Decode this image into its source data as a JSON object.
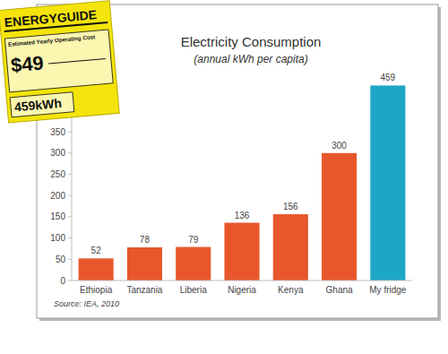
{
  "chart_data": {
    "type": "bar",
    "title": "Electricity Consumption",
    "subtitle": "(annual kWh per capita)",
    "categories": [
      "Ethiopia",
      "Tanzania",
      "Liberia",
      "Nigeria",
      "Kenya",
      "Ghana",
      "My fridge"
    ],
    "values": [
      52,
      78,
      79,
      136,
      156,
      300,
      459
    ],
    "colors": [
      "#e8572b",
      "#e8572b",
      "#e8572b",
      "#e8572b",
      "#e8572b",
      "#e8572b",
      "#1ea6c6"
    ],
    "ylim": [
      0,
      500
    ],
    "yticks": [
      0,
      50,
      100,
      150,
      200,
      250,
      300,
      350
    ],
    "grid": false,
    "data_labels": true,
    "annotations": [
      "Source: IEA, 2010"
    ]
  },
  "energy_guide": {
    "title": "ENERGYGUIDE",
    "cost_caption": "Estimated Yearly Operating Cost",
    "cost": "$49",
    "usage": "459kWh"
  }
}
